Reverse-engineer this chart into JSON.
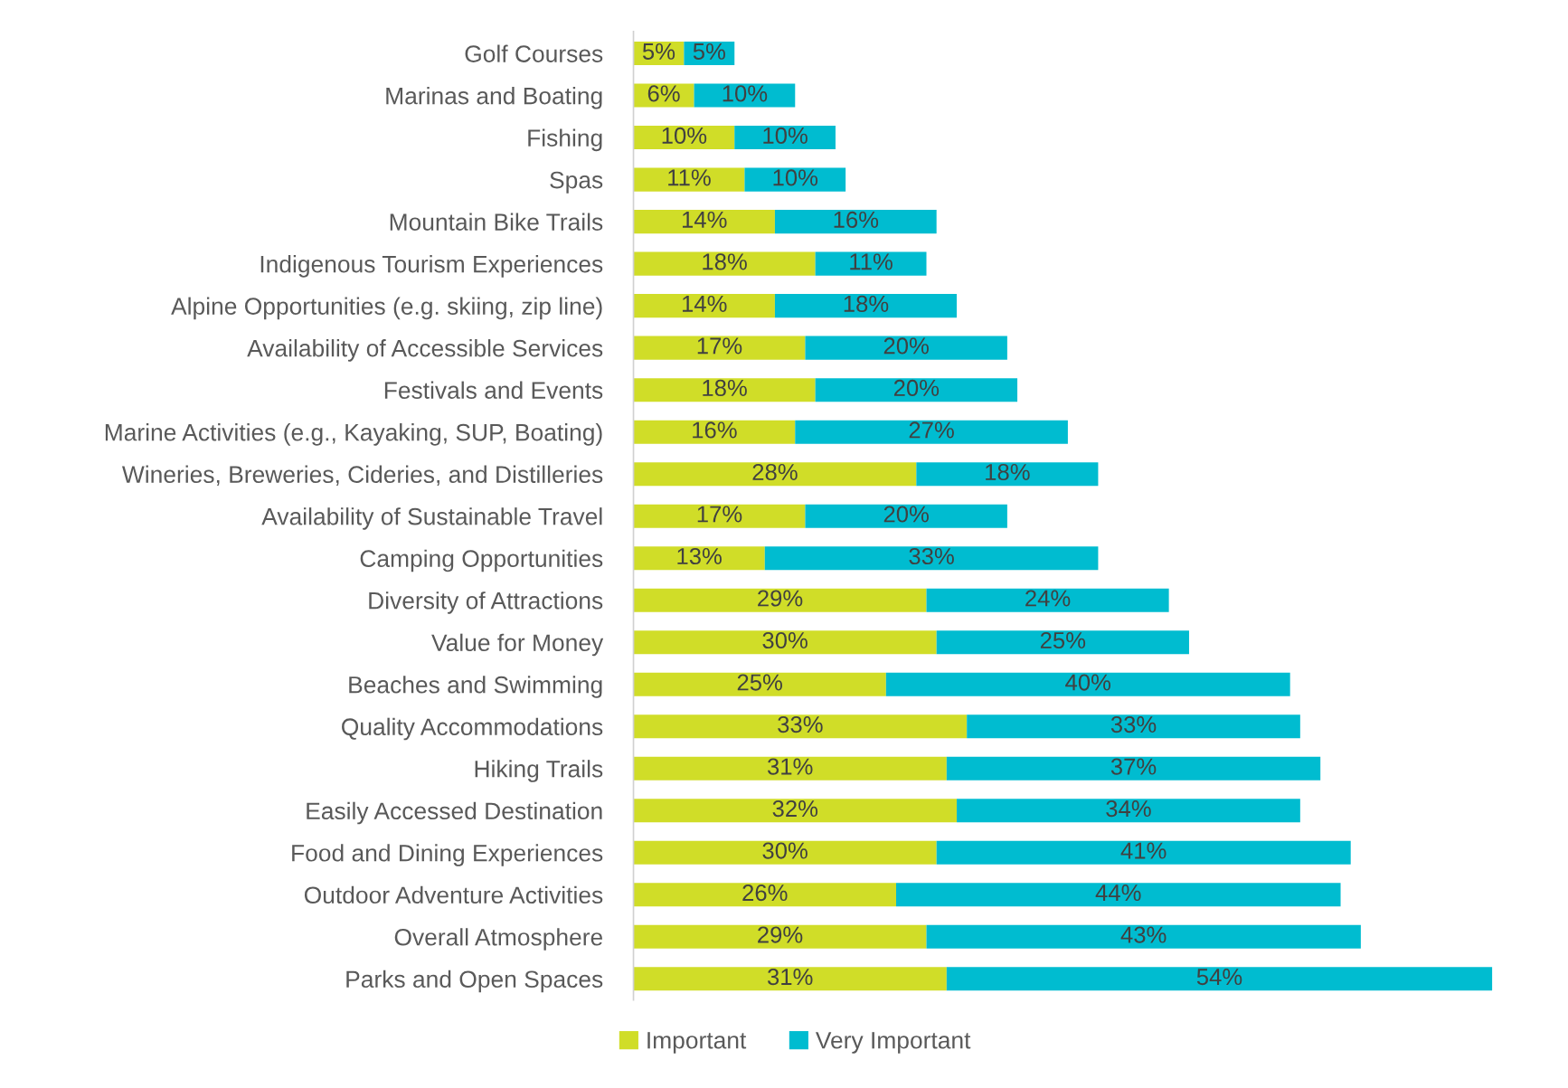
{
  "chart_data": {
    "type": "bar",
    "orientation": "horizontal",
    "stacked": true,
    "legend": "bottom",
    "grid": false,
    "tick_labels": "y",
    "categories": [
      "Golf Courses",
      "Marinas and Boating",
      "Fishing",
      "Spas",
      "Mountain Bike Trails",
      "Indigenous Tourism Experiences",
      "Alpine Opportunities (e.g. skiing, zip line)",
      "Availability of Accessible Services",
      "Festivals and Events",
      "Marine Activities (e.g., Kayaking, SUP, Boating)",
      "Wineries, Breweries, Cideries, and Distilleries",
      "Availability of Sustainable Travel",
      "Camping Opportunities",
      "Diversity of Attractions",
      "Value for Money",
      "Beaches and Swimming",
      "Quality Accommodations",
      "Hiking Trails",
      "Easily Accessed Destination",
      "Food and Dining Experiences",
      "Outdoor Adventure Activities",
      "Overall Atmosphere",
      "Parks and Open Spaces"
    ],
    "series": [
      {
        "name": "Important",
        "color": "#d0dd28",
        "values": [
          5,
          6,
          10,
          11,
          14,
          18,
          14,
          17,
          18,
          16,
          28,
          17,
          13,
          29,
          30,
          25,
          33,
          31,
          32,
          30,
          26,
          29,
          31
        ],
        "value_labels": [
          "5%",
          "6%",
          "10%",
          "11%",
          "14%",
          "18%",
          "14%",
          "17%",
          "18%",
          "16%",
          "28%",
          "17%",
          "13%",
          "29%",
          "30%",
          "25%",
          "33%",
          "31%",
          "32%",
          "30%",
          "26%",
          "29%",
          "31%"
        ]
      },
      {
        "name": "Very Important",
        "color": "#00bcd0",
        "values": [
          5,
          10,
          10,
          10,
          16,
          11,
          18,
          20,
          20,
          27,
          18,
          20,
          33,
          24,
          25,
          40,
          33,
          37,
          34,
          41,
          44,
          43,
          54
        ],
        "value_labels": [
          "5%",
          "10%",
          "10%",
          "10%",
          "16%",
          "11%",
          "18%",
          "20%",
          "20%",
          "27%",
          "18%",
          "20%",
          "33%",
          "24%",
          "25%",
          "40%",
          "33%",
          "37%",
          "34%",
          "41%",
          "44%",
          "43%",
          "54%"
        ]
      }
    ]
  }
}
